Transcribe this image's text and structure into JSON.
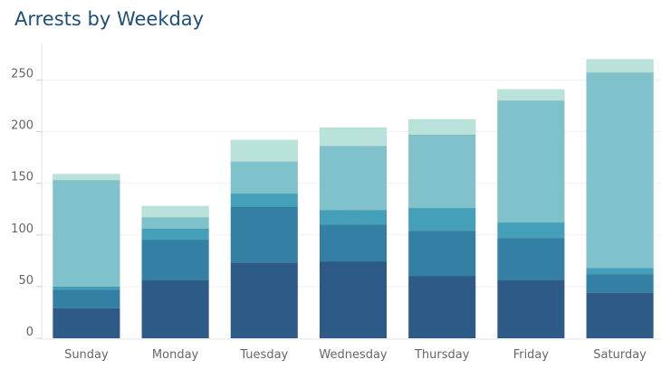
{
  "chart_data": {
    "type": "bar",
    "stacked": true,
    "title": "Arrests by Weekday",
    "xlabel": "",
    "ylabel": "",
    "ylim": [
      0,
      290
    ],
    "yticks": [
      0,
      50,
      100,
      150,
      200,
      250
    ],
    "grid": true,
    "categories": [
      "Sunday",
      "Monday",
      "Tuesday",
      "Wednesday",
      "Thursday",
      "Friday",
      "Saturday"
    ],
    "series": [
      {
        "color": "#2e5a87",
        "values": [
          29,
          56,
          73,
          74,
          60,
          56,
          44
        ]
      },
      {
        "color": "#347fa4",
        "values": [
          18,
          39,
          54,
          36,
          44,
          41,
          18
        ]
      },
      {
        "color": "#43a0b8",
        "values": [
          3,
          11,
          13,
          14,
          22,
          15,
          6
        ]
      },
      {
        "color": "#80c2cb",
        "values": [
          103,
          11,
          31,
          62,
          71,
          118,
          189
        ]
      },
      {
        "color": "#b9e3da",
        "values": [
          6,
          11,
          21,
          18,
          15,
          11,
          13
        ]
      }
    ]
  }
}
